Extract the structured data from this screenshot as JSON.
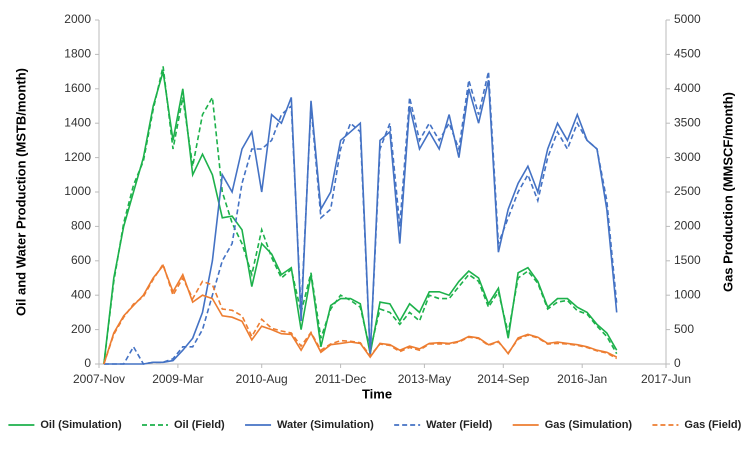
{
  "chart_data": {
    "type": "line",
    "x_label": "Time",
    "y_label": "Oil and Water Production (MSTB/month)",
    "y2_label": "Gas Production (MMSCF/month)",
    "x": [
      "2007-12",
      "2008-02",
      "2008-04",
      "2008-06",
      "2008-08",
      "2008-10",
      "2008-12",
      "2009-02",
      "2009-04",
      "2009-06",
      "2009-08",
      "2009-10",
      "2009-12",
      "2010-02",
      "2010-04",
      "2010-06",
      "2010-08",
      "2010-10",
      "2010-12",
      "2011-02",
      "2011-04",
      "2011-06",
      "2011-08",
      "2011-10",
      "2011-12",
      "2012-02",
      "2012-04",
      "2012-06",
      "2012-08",
      "2012-10",
      "2012-12",
      "2013-02",
      "2013-04",
      "2013-06",
      "2013-08",
      "2013-10",
      "2013-12",
      "2014-02",
      "2014-04",
      "2014-06",
      "2014-08",
      "2014-10",
      "2014-12",
      "2015-02",
      "2015-04",
      "2015-06",
      "2015-08",
      "2015-10",
      "2015-12",
      "2016-02",
      "2016-04",
      "2016-06",
      "2016-08"
    ],
    "xlim": [
      "2007-11",
      "2017-06"
    ],
    "xticks": [
      {
        "value": "2007-11",
        "label": "2007-Nov"
      },
      {
        "value": "2009-03",
        "label": "2009-Mar"
      },
      {
        "value": "2010-08",
        "label": "2010-Aug"
      },
      {
        "value": "2011-12",
        "label": "2011-Dec"
      },
      {
        "value": "2013-05",
        "label": "2013-May"
      },
      {
        "value": "2014-09",
        "label": "2014-Sep"
      },
      {
        "value": "2016-01",
        "label": "2016-Jan"
      },
      {
        "value": "2017-06",
        "label": "2017-Jun"
      }
    ],
    "ylim": [
      0,
      2000
    ],
    "yticks": [
      0,
      200,
      400,
      600,
      800,
      1000,
      1200,
      1400,
      1600,
      1800,
      2000
    ],
    "y2lim": [
      0,
      5000
    ],
    "y2ticks": [
      0,
      500,
      1000,
      1500,
      2000,
      2500,
      3000,
      3500,
      4000,
      4500,
      5000
    ],
    "grid": false,
    "legend": "bottom",
    "series": [
      {
        "name": "Oil (Simulation)",
        "color": "#1db14b",
        "dashed": false,
        "values": [
          0,
          500,
          800,
          1000,
          1200,
          1500,
          1700,
          1300,
          1600,
          1100,
          1220,
          1100,
          850,
          860,
          780,
          450,
          700,
          640,
          520,
          560,
          200,
          520,
          100,
          340,
          380,
          380,
          350,
          60,
          360,
          350,
          250,
          350,
          300,
          420,
          420,
          400,
          480,
          540,
          500,
          350,
          440,
          150,
          530,
          560,
          480,
          330,
          380,
          380,
          330,
          300,
          230,
          180,
          80
        ]
      },
      {
        "name": "Oil (Field)",
        "color": "#1db14b",
        "dashed": true,
        "values": [
          0,
          480,
          820,
          1040,
          1180,
          1480,
          1730,
          1250,
          1550,
          1150,
          1450,
          1550,
          1000,
          820,
          700,
          520,
          780,
          620,
          500,
          550,
          300,
          530,
          150,
          320,
          400,
          370,
          330,
          80,
          320,
          300,
          230,
          300,
          250,
          400,
          380,
          380,
          450,
          520,
          480,
          330,
          420,
          180,
          500,
          540,
          470,
          320,
          360,
          370,
          310,
          290,
          220,
          160,
          60
        ]
      },
      {
        "name": "Water (Simulation)",
        "color": "#4472c4",
        "dashed": false,
        "values": [
          0,
          0,
          0,
          0,
          0,
          10,
          10,
          20,
          80,
          150,
          300,
          600,
          1100,
          1000,
          1250,
          1350,
          1000,
          1450,
          1400,
          1550,
          250,
          1530,
          900,
          1000,
          1300,
          1350,
          1400,
          50,
          1300,
          1350,
          700,
          1500,
          1250,
          1350,
          1250,
          1450,
          1200,
          1600,
          1400,
          1650,
          650,
          900,
          1050,
          1150,
          1000,
          1250,
          1400,
          1300,
          1450,
          1300,
          1250,
          900,
          300
        ]
      },
      {
        "name": "Water (Field)",
        "color": "#4472c4",
        "dashed": true,
        "values": [
          0,
          0,
          0,
          100,
          0,
          10,
          10,
          30,
          100,
          100,
          200,
          400,
          600,
          700,
          1050,
          1250,
          1250,
          1300,
          1450,
          1500,
          300,
          1500,
          850,
          900,
          1250,
          1400,
          1350,
          50,
          1250,
          1400,
          800,
          1550,
          1300,
          1400,
          1300,
          1400,
          1250,
          1650,
          1450,
          1700,
          700,
          850,
          1000,
          1100,
          950,
          1200,
          1350,
          1250,
          1400,
          1300,
          1250,
          950,
          350
        ]
      },
      {
        "name": "Gas (Simulation)",
        "color": "#ed7d31",
        "dashed": false,
        "axis": "y2",
        "values": [
          0,
          450,
          700,
          850,
          1000,
          1250,
          1430,
          1050,
          1300,
          900,
          1000,
          950,
          700,
          680,
          620,
          350,
          550,
          500,
          440,
          430,
          200,
          450,
          170,
          280,
          300,
          320,
          300,
          100,
          300,
          280,
          200,
          260,
          220,
          300,
          310,
          300,
          330,
          400,
          380,
          280,
          330,
          150,
          380,
          430,
          390,
          300,
          320,
          300,
          280,
          250,
          200,
          170,
          100
        ]
      },
      {
        "name": "Gas (Field)",
        "color": "#ed7d31",
        "dashed": true,
        "axis": "y2",
        "values": [
          0,
          430,
          680,
          870,
          980,
          1230,
          1450,
          1000,
          1250,
          950,
          1200,
          1150,
          800,
          780,
          700,
          400,
          650,
          520,
          480,
          450,
          260,
          460,
          200,
          290,
          340,
          330,
          310,
          120,
          290,
          270,
          180,
          240,
          200,
          290,
          290,
          290,
          320,
          390,
          370,
          270,
          320,
          160,
          360,
          420,
          380,
          290,
          300,
          290,
          270,
          240,
          190,
          160,
          80
        ]
      }
    ]
  }
}
